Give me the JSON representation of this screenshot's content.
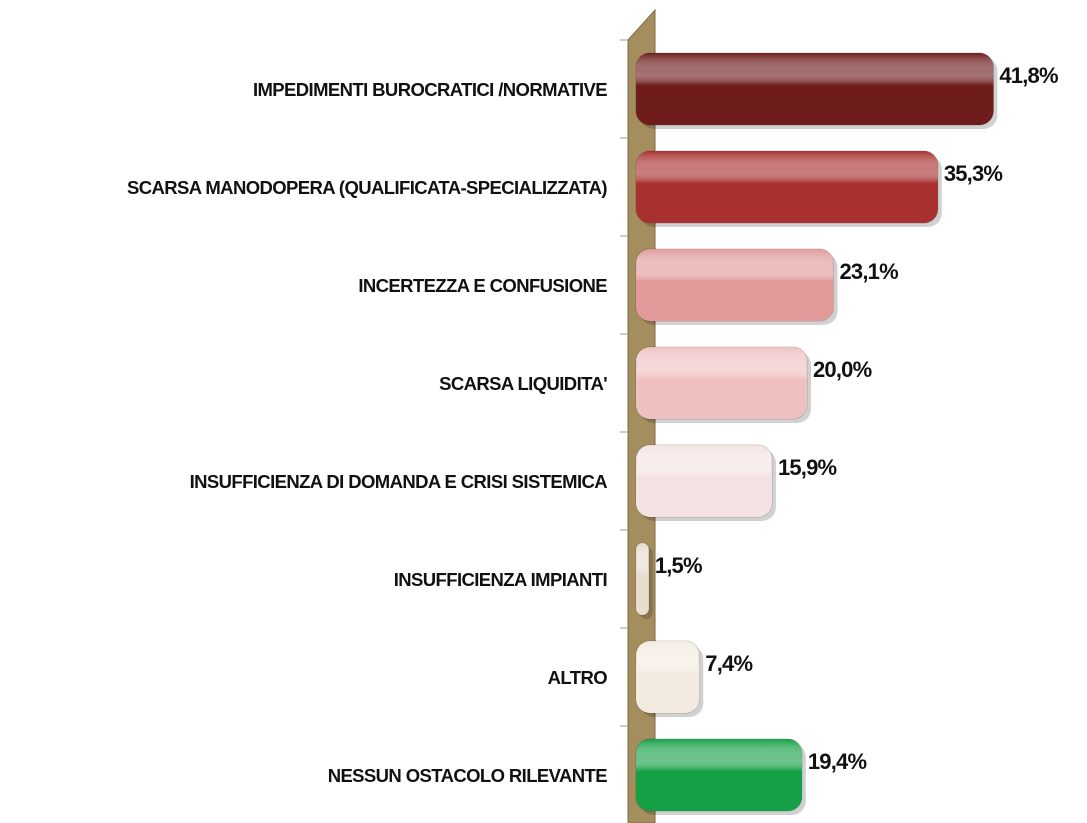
{
  "chart_data": {
    "type": "bar",
    "categories": [
      "IMPEDIMENTI BUROCRATICI /NORMATIVE",
      "SCARSA MANODOPERA (QUALIFICATA-SPECIALIZZATA)",
      "INCERTEZZA E CONFUSIONE",
      "SCARSA LIQUIDITA'",
      "INSUFFICIENZA DI DOMANDA E CRISI SISTEMICA",
      "INSUFFICIENZA IMPIANTI",
      "ALTRO",
      "NESSUN OSTACOLO RILEVANTE"
    ],
    "values": [
      41.8,
      35.3,
      23.1,
      20.0,
      15.9,
      1.5,
      7.4,
      19.4
    ],
    "value_labels": [
      "41,8%",
      "35,3%",
      "23,1%",
      "20,0%",
      "15,9%",
      "1,5%",
      "7,4%",
      "19,4%"
    ],
    "colors": [
      "#6e1c1c",
      "#a8302f",
      "#e29a9a",
      "#efc0c0",
      "#f4e2e2",
      "#e6dccf",
      "#f3ebdf",
      "#16a046"
    ]
  }
}
